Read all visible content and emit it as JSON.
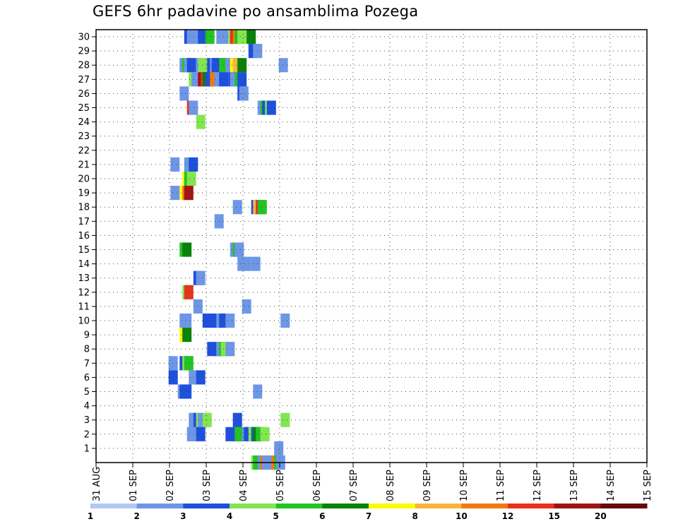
{
  "chart_data": {
    "type": "heatmap",
    "title": "GEFS 6hr padavine po ansamblima Pozega",
    "x_ticks": [
      "31 AUG",
      "01 SEP",
      "02 SEP",
      "03 SEP",
      "04 SEP",
      "05 SEP",
      "06 SEP",
      "07 SEP",
      "08 SEP",
      "09 SEP",
      "10 SEP",
      "11 SEP",
      "12 SEP",
      "13 SEP",
      "14 SEP",
      "15 SEP"
    ],
    "y_ticks": [
      "1",
      "2",
      "3",
      "4",
      "5",
      "6",
      "7",
      "8",
      "9",
      "10",
      "11",
      "12",
      "13",
      "14",
      "15",
      "16",
      "17",
      "18",
      "19",
      "20",
      "21",
      "22",
      "23",
      "24",
      "25",
      "26",
      "27",
      "28",
      "29",
      "30"
    ],
    "xlim_days": [
      0,
      15
    ],
    "ylim": [
      0,
      30
    ],
    "grid": true,
    "colorbar": {
      "labels": [
        "1",
        "2",
        "3",
        "4",
        "5",
        "6",
        "7",
        "8",
        "10",
        "12",
        "15",
        "20"
      ],
      "colors": [
        "#b4c8f0",
        "#6e96e6",
        "#1e50dc",
        "#82e650",
        "#23c323",
        "#0a820a",
        "#fafa0a",
        "#fab43c",
        "#f07814",
        "#e6321e",
        "#a01414",
        "#640a0a"
      ]
    },
    "cells": [
      [
        9.6,
        30,
        2
      ],
      [
        9.9,
        30,
        1
      ],
      [
        10.4,
        30,
        1
      ],
      [
        11.1,
        30,
        2
      ],
      [
        11.9,
        30,
        4
      ],
      [
        13.1,
        30,
        1
      ],
      [
        13.4,
        30,
        1
      ],
      [
        14.4,
        30,
        3
      ],
      [
        14.6,
        30,
        9
      ],
      [
        14.9,
        30,
        8
      ],
      [
        15.1,
        30,
        4
      ],
      [
        15.4,
        30,
        3
      ],
      [
        16.1,
        30,
        3
      ],
      [
        16.4,
        30,
        5
      ],
      [
        16.6,
        29,
        2
      ],
      [
        17.1,
        29,
        1
      ],
      [
        9.1,
        28,
        1
      ],
      [
        9.4,
        28,
        4
      ],
      [
        9.6,
        28,
        1
      ],
      [
        9.9,
        28,
        2
      ],
      [
        10.9,
        28,
        1
      ],
      [
        11.1,
        28,
        3
      ],
      [
        11.4,
        28,
        3
      ],
      [
        12.1,
        28,
        2
      ],
      [
        12.4,
        28,
        1
      ],
      [
        12.6,
        28,
        2
      ],
      [
        13.1,
        28,
        2
      ],
      [
        13.4,
        28,
        4
      ],
      [
        14.1,
        28,
        1
      ],
      [
        14.4,
        28,
        1
      ],
      [
        14.6,
        28,
        6
      ],
      [
        14.9,
        28,
        7
      ],
      [
        15.4,
        28,
        5
      ],
      [
        19.9,
        28,
        1
      ],
      [
        10.1,
        27,
        3
      ],
      [
        10.4,
        27,
        1
      ],
      [
        11.1,
        27,
        10
      ],
      [
        11.4,
        27,
        9
      ],
      [
        11.6,
        27,
        5
      ],
      [
        11.9,
        27,
        2
      ],
      [
        12.4,
        27,
        8
      ],
      [
        12.9,
        27,
        1
      ],
      [
        13.4,
        27,
        2
      ],
      [
        14.4,
        27,
        2
      ],
      [
        14.6,
        27,
        1
      ],
      [
        15.1,
        27,
        4
      ],
      [
        15.4,
        27,
        2
      ],
      [
        9.1,
        26,
        1
      ],
      [
        15.4,
        26,
        2
      ],
      [
        15.6,
        26,
        1
      ],
      [
        9.9,
        25,
        9
      ],
      [
        10.1,
        25,
        1
      ],
      [
        17.6,
        25,
        1
      ],
      [
        17.9,
        25,
        4
      ],
      [
        18.1,
        25,
        2
      ],
      [
        18.4,
        25,
        3
      ],
      [
        18.6,
        25,
        2
      ],
      [
        10.9,
        24,
        3
      ],
      [
        8.1,
        21,
        1
      ],
      [
        9.6,
        21,
        1
      ],
      [
        10.1,
        21,
        2
      ],
      [
        9.4,
        20,
        6
      ],
      [
        9.6,
        20,
        4
      ],
      [
        9.9,
        20,
        3
      ],
      [
        8.1,
        19,
        1
      ],
      [
        9.1,
        19,
        6
      ],
      [
        9.4,
        19,
        8
      ],
      [
        9.6,
        19,
        10
      ],
      [
        14.9,
        18,
        1
      ],
      [
        16.9,
        18,
        2
      ],
      [
        17.1,
        18,
        7
      ],
      [
        17.4,
        18,
        9
      ],
      [
        17.6,
        18,
        4
      ],
      [
        12.9,
        17,
        1
      ],
      [
        9.1,
        15,
        4
      ],
      [
        9.4,
        15,
        5
      ],
      [
        14.6,
        15,
        1
      ],
      [
        14.9,
        15,
        4
      ],
      [
        15.1,
        15,
        1
      ],
      [
        15.4,
        14,
        1
      ],
      [
        15.9,
        14,
        1
      ],
      [
        16.9,
        14,
        1
      ],
      [
        10.6,
        13,
        2
      ],
      [
        10.9,
        13,
        1
      ],
      [
        9.4,
        12,
        3
      ],
      [
        9.6,
        12,
        9
      ],
      [
        10.6,
        11,
        1
      ],
      [
        15.9,
        11,
        1
      ],
      [
        9.1,
        10,
        1
      ],
      [
        9.4,
        10,
        1
      ],
      [
        11.6,
        10,
        2
      ],
      [
        12.4,
        10,
        2
      ],
      [
        12.9,
        10,
        2
      ],
      [
        13.1,
        10,
        1
      ],
      [
        13.4,
        10,
        2
      ],
      [
        14.1,
        10,
        1
      ],
      [
        20.1,
        10,
        1
      ],
      [
        9.1,
        9,
        6
      ],
      [
        9.4,
        9,
        5
      ],
      [
        12.1,
        8,
        2
      ],
      [
        12.9,
        8,
        2
      ],
      [
        13.1,
        8,
        1
      ],
      [
        13.4,
        8,
        4
      ],
      [
        13.6,
        8,
        3
      ],
      [
        13.9,
        8,
        3
      ],
      [
        14.1,
        8,
        1
      ],
      [
        7.9,
        7,
        1
      ],
      [
        9.1,
        7,
        2
      ],
      [
        9.4,
        7,
        3
      ],
      [
        9.6,
        7,
        4
      ],
      [
        7.9,
        6,
        2
      ],
      [
        10.1,
        6,
        1
      ],
      [
        10.9,
        6,
        2
      ],
      [
        8.9,
        5,
        1
      ],
      [
        9.1,
        5,
        2
      ],
      [
        9.4,
        5,
        2
      ],
      [
        17.1,
        5,
        1
      ],
      [
        10.1,
        3,
        1
      ],
      [
        10.4,
        3,
        1
      ],
      [
        10.6,
        3,
        2
      ],
      [
        10.9,
        3,
        3
      ],
      [
        11.1,
        3,
        1
      ],
      [
        11.4,
        3,
        1
      ],
      [
        11.6,
        3,
        3
      ],
      [
        14.9,
        3,
        2
      ],
      [
        20.1,
        3,
        3
      ],
      [
        9.9,
        2,
        1
      ],
      [
        10.1,
        2,
        1
      ],
      [
        10.9,
        2,
        2
      ],
      [
        14.1,
        2,
        2
      ],
      [
        14.9,
        2,
        2
      ],
      [
        15.1,
        2,
        4
      ],
      [
        15.9,
        2,
        1
      ],
      [
        16.1,
        2,
        2
      ],
      [
        16.4,
        2,
        2
      ],
      [
        16.6,
        2,
        3
      ],
      [
        16.9,
        2,
        2
      ],
      [
        17.1,
        2,
        5
      ],
      [
        17.4,
        2,
        4
      ],
      [
        17.9,
        2,
        3
      ],
      [
        19.4,
        1,
        1
      ],
      [
        16.9,
        0,
        3
      ],
      [
        17.1,
        0,
        4
      ],
      [
        17.6,
        0,
        1
      ],
      [
        17.9,
        0,
        8
      ],
      [
        18.1,
        0,
        1
      ],
      [
        18.4,
        0,
        1
      ],
      [
        19.1,
        0,
        8
      ],
      [
        19.4,
        0,
        4
      ],
      [
        19.6,
        0,
        1
      ]
    ]
  }
}
